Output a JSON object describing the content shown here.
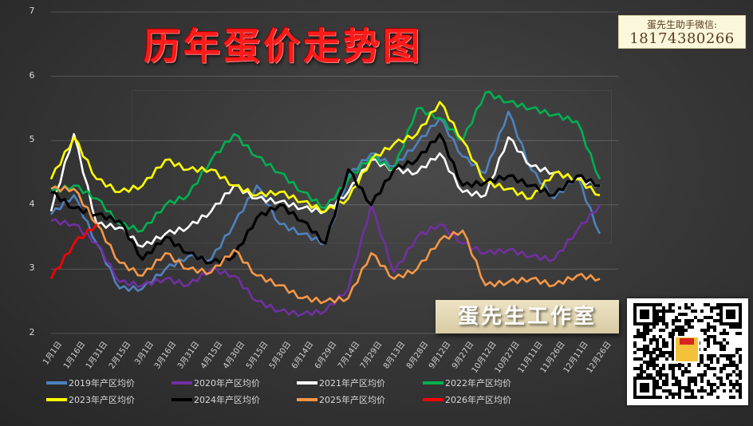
{
  "header": {
    "title": "历年蛋价走势图",
    "contact_label": "蛋先生助手微信:",
    "contact_number": "18174380266",
    "studio_label": "蛋先生工作室",
    "qr_icon": "qr-code-icon"
  },
  "chart_data": {
    "type": "line",
    "title": "历年蛋价走势图",
    "xlabel": "",
    "ylabel": "",
    "ylim": [
      2,
      7
    ],
    "yticks": [
      2,
      3,
      4,
      5,
      6,
      7
    ],
    "grid": true,
    "legend_position": "bottom",
    "categories": [
      "1月1日",
      "1月16日",
      "1月31日",
      "2月15日",
      "3月1日",
      "3月16日",
      "3月31日",
      "4月15日",
      "4月30日",
      "5月15日",
      "5月30日",
      "6月14日",
      "6月29日",
      "7月14日",
      "7月29日",
      "8月13日",
      "8月28日",
      "9月12日",
      "9月27日",
      "10月12日",
      "10月27日",
      "11月11日",
      "11月26日",
      "12月11日",
      "12月26日"
    ],
    "series": [
      {
        "name": "2019年产区均价",
        "color": "#4f81bd",
        "values": [
          3.85,
          4.15,
          3.4,
          2.7,
          2.7,
          3.0,
          3.2,
          3.15,
          3.7,
          4.3,
          3.7,
          3.55,
          3.4,
          4.45,
          4.8,
          4.6,
          4.95,
          5.35,
          4.75,
          4.5,
          5.45,
          4.55,
          4.1,
          4.45,
          3.55
        ]
      },
      {
        "name": "2020年产区均价",
        "color": "#7030a0",
        "values": [
          3.75,
          3.7,
          3.4,
          2.8,
          2.75,
          2.85,
          2.75,
          3.0,
          2.9,
          2.5,
          2.35,
          2.3,
          2.35,
          2.7,
          4.0,
          2.95,
          3.5,
          3.7,
          3.4,
          3.25,
          3.3,
          3.2,
          3.15,
          3.6,
          4.0
        ]
      },
      {
        "name": "2021年产区均价",
        "color": "#ffffff",
        "values": [
          3.9,
          5.1,
          3.7,
          3.65,
          3.35,
          3.55,
          3.65,
          3.9,
          4.3,
          4.1,
          4.05,
          3.95,
          3.9,
          4.2,
          4.7,
          4.55,
          4.5,
          4.8,
          4.2,
          4.15,
          5.05,
          4.6,
          4.5,
          4.4,
          4.3
        ]
      },
      {
        "name": "2022年产区均价",
        "color": "#00b050",
        "values": [
          4.2,
          4.3,
          4.1,
          3.7,
          3.6,
          4.0,
          4.15,
          4.7,
          5.1,
          4.75,
          4.5,
          4.2,
          3.95,
          4.4,
          4.75,
          4.55,
          5.5,
          5.35,
          5.0,
          5.75,
          5.6,
          5.5,
          5.4,
          5.3,
          4.4
        ]
      },
      {
        "name": "2023年产区均价",
        "color": "#ffff00",
        "values": [
          4.4,
          5.05,
          4.4,
          4.2,
          4.3,
          4.7,
          4.55,
          4.55,
          4.3,
          4.15,
          4.2,
          4.05,
          3.9,
          4.1,
          4.7,
          4.95,
          5.1,
          5.6,
          5.0,
          4.35,
          4.25,
          4.1,
          4.5,
          4.4,
          4.15
        ]
      },
      {
        "name": "2024年产区均价",
        "color": "#000000",
        "values": [
          4.2,
          3.95,
          3.85,
          3.75,
          3.15,
          3.5,
          3.25,
          3.1,
          3.2,
          3.8,
          4.0,
          3.75,
          3.4,
          4.55,
          4.0,
          4.55,
          4.7,
          5.1,
          4.3,
          4.35,
          4.45,
          4.3,
          4.15,
          4.45,
          4.3
        ]
      },
      {
        "name": "2025年产区均价",
        "color": "#f79646",
        "values": [
          4.25,
          4.25,
          3.7,
          3.1,
          2.9,
          3.25,
          3.0,
          2.95,
          3.3,
          2.9,
          2.75,
          2.55,
          2.5,
          2.55,
          3.25,
          2.85,
          3.0,
          3.45,
          3.6,
          2.75,
          2.8,
          2.85,
          2.75,
          2.9,
          2.85
        ]
      },
      {
        "name": "2026年产区均价",
        "color": "#ff0000",
        "values": [
          2.85,
          3.4,
          3.7
        ]
      }
    ]
  },
  "legend": {
    "items": [
      {
        "label": "2019年产区均价",
        "color": "#4f81bd"
      },
      {
        "label": "2020年产区均价",
        "color": "#7030a0"
      },
      {
        "label": "2021年产区均价",
        "color": "#ffffff"
      },
      {
        "label": "2022年产区均价",
        "color": "#00b050"
      },
      {
        "label": "2023年产区均价",
        "color": "#ffff00"
      },
      {
        "label": "2024年产区均价",
        "color": "#000000"
      },
      {
        "label": "2025年产区均价",
        "color": "#f79646"
      },
      {
        "label": "2026年产区均价",
        "color": "#ff0000"
      }
    ]
  }
}
